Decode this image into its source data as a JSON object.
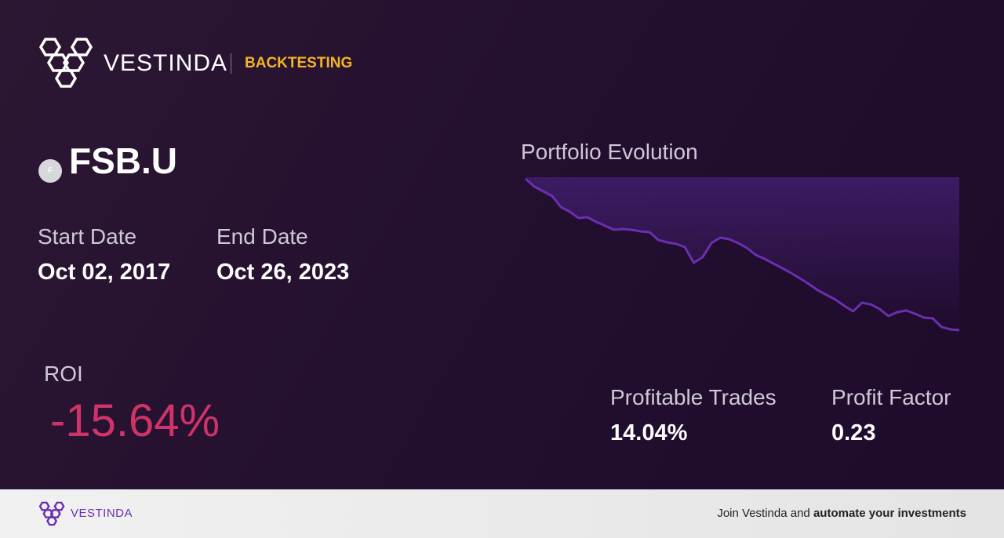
{
  "header": {
    "brand": "VESTINDA",
    "section": "BACKTESTING"
  },
  "ticker": {
    "icon": "F",
    "symbol": "FSB.U"
  },
  "dates": {
    "start_label": "Start Date",
    "start": "Oct 02, 2017",
    "end_label": "End Date",
    "end": "Oct 26, 2023"
  },
  "roi": {
    "label": "ROI",
    "value": "-15.64%"
  },
  "stats": [
    {
      "label": "Profitable Trades",
      "value": "14.04%"
    },
    {
      "label": "Profit Factor",
      "value": "0.23"
    }
  ],
  "chart_data": {
    "type": "area",
    "title": "Portfolio Evolution",
    "color": "#6a2fb0",
    "values": [
      100,
      99.19,
      98.7,
      98.22,
      97.08,
      96.6,
      95.95,
      96.03,
      95.54,
      95.14,
      94.73,
      94.81,
      94.73,
      94.57,
      94.49,
      93.68,
      93.44,
      93.27,
      92.95,
      91.33,
      91.9,
      93.36,
      93.92,
      93.76,
      93.36,
      92.87,
      92.14,
      91.73,
      91.25,
      90.76,
      90.27,
      89.71,
      89.14,
      88.49,
      88.01,
      87.52,
      86.88,
      86.31,
      87.2,
      87.03,
      86.55,
      85.82,
      86.22,
      86.39,
      86.06,
      85.66,
      85.58,
      84.69,
      84.44,
      84.36
    ]
  },
  "footer": {
    "brand": "VESTINDA",
    "cta": "Join Vestinda and",
    "cta_bold": "automate your investments"
  }
}
